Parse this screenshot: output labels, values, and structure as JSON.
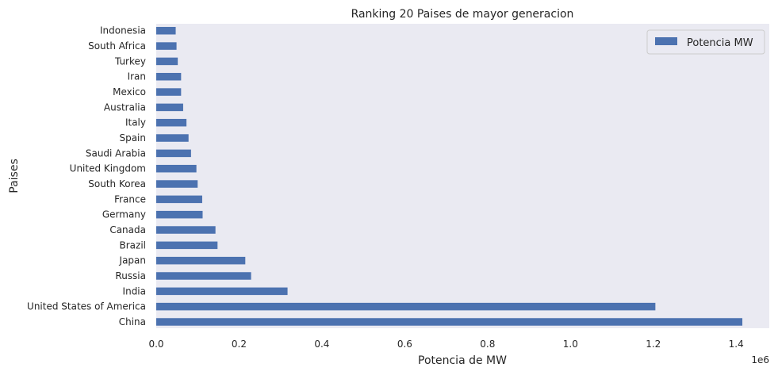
{
  "chart_data": {
    "type": "bar",
    "orientation": "horizontal",
    "title": "Ranking 20 Paises de mayor generacion",
    "xlabel": "Potencia de MW",
    "ylabel": "Paises",
    "x_offset_label": "1e6",
    "xlim": [
      0,
      1.48
    ],
    "xticks": [
      "0.0",
      "0.2",
      "0.4",
      "0.6",
      "0.8",
      "1.0",
      "1.2",
      "1.4"
    ],
    "grid": false,
    "legend_position": "top-right",
    "bar_color": "#4c72b0",
    "background_color": "#eaeaf2",
    "categories": [
      "China",
      "United States of America",
      "India",
      "Russia",
      "Japan",
      "Brazil",
      "Canada",
      "Germany",
      "France",
      "South Korea",
      "United Kingdom",
      "Saudi Arabia",
      "Spain",
      "Italy",
      "Australia",
      "Mexico",
      "Iran",
      "Turkey",
      "South Africa",
      "Indonesia"
    ],
    "series": [
      {
        "name": "Potencia MW",
        "values": [
          1.415,
          1.205,
          0.317,
          0.229,
          0.215,
          0.148,
          0.143,
          0.112,
          0.111,
          0.1,
          0.097,
          0.084,
          0.078,
          0.073,
          0.065,
          0.06,
          0.06,
          0.052,
          0.049,
          0.047
        ]
      }
    ]
  }
}
